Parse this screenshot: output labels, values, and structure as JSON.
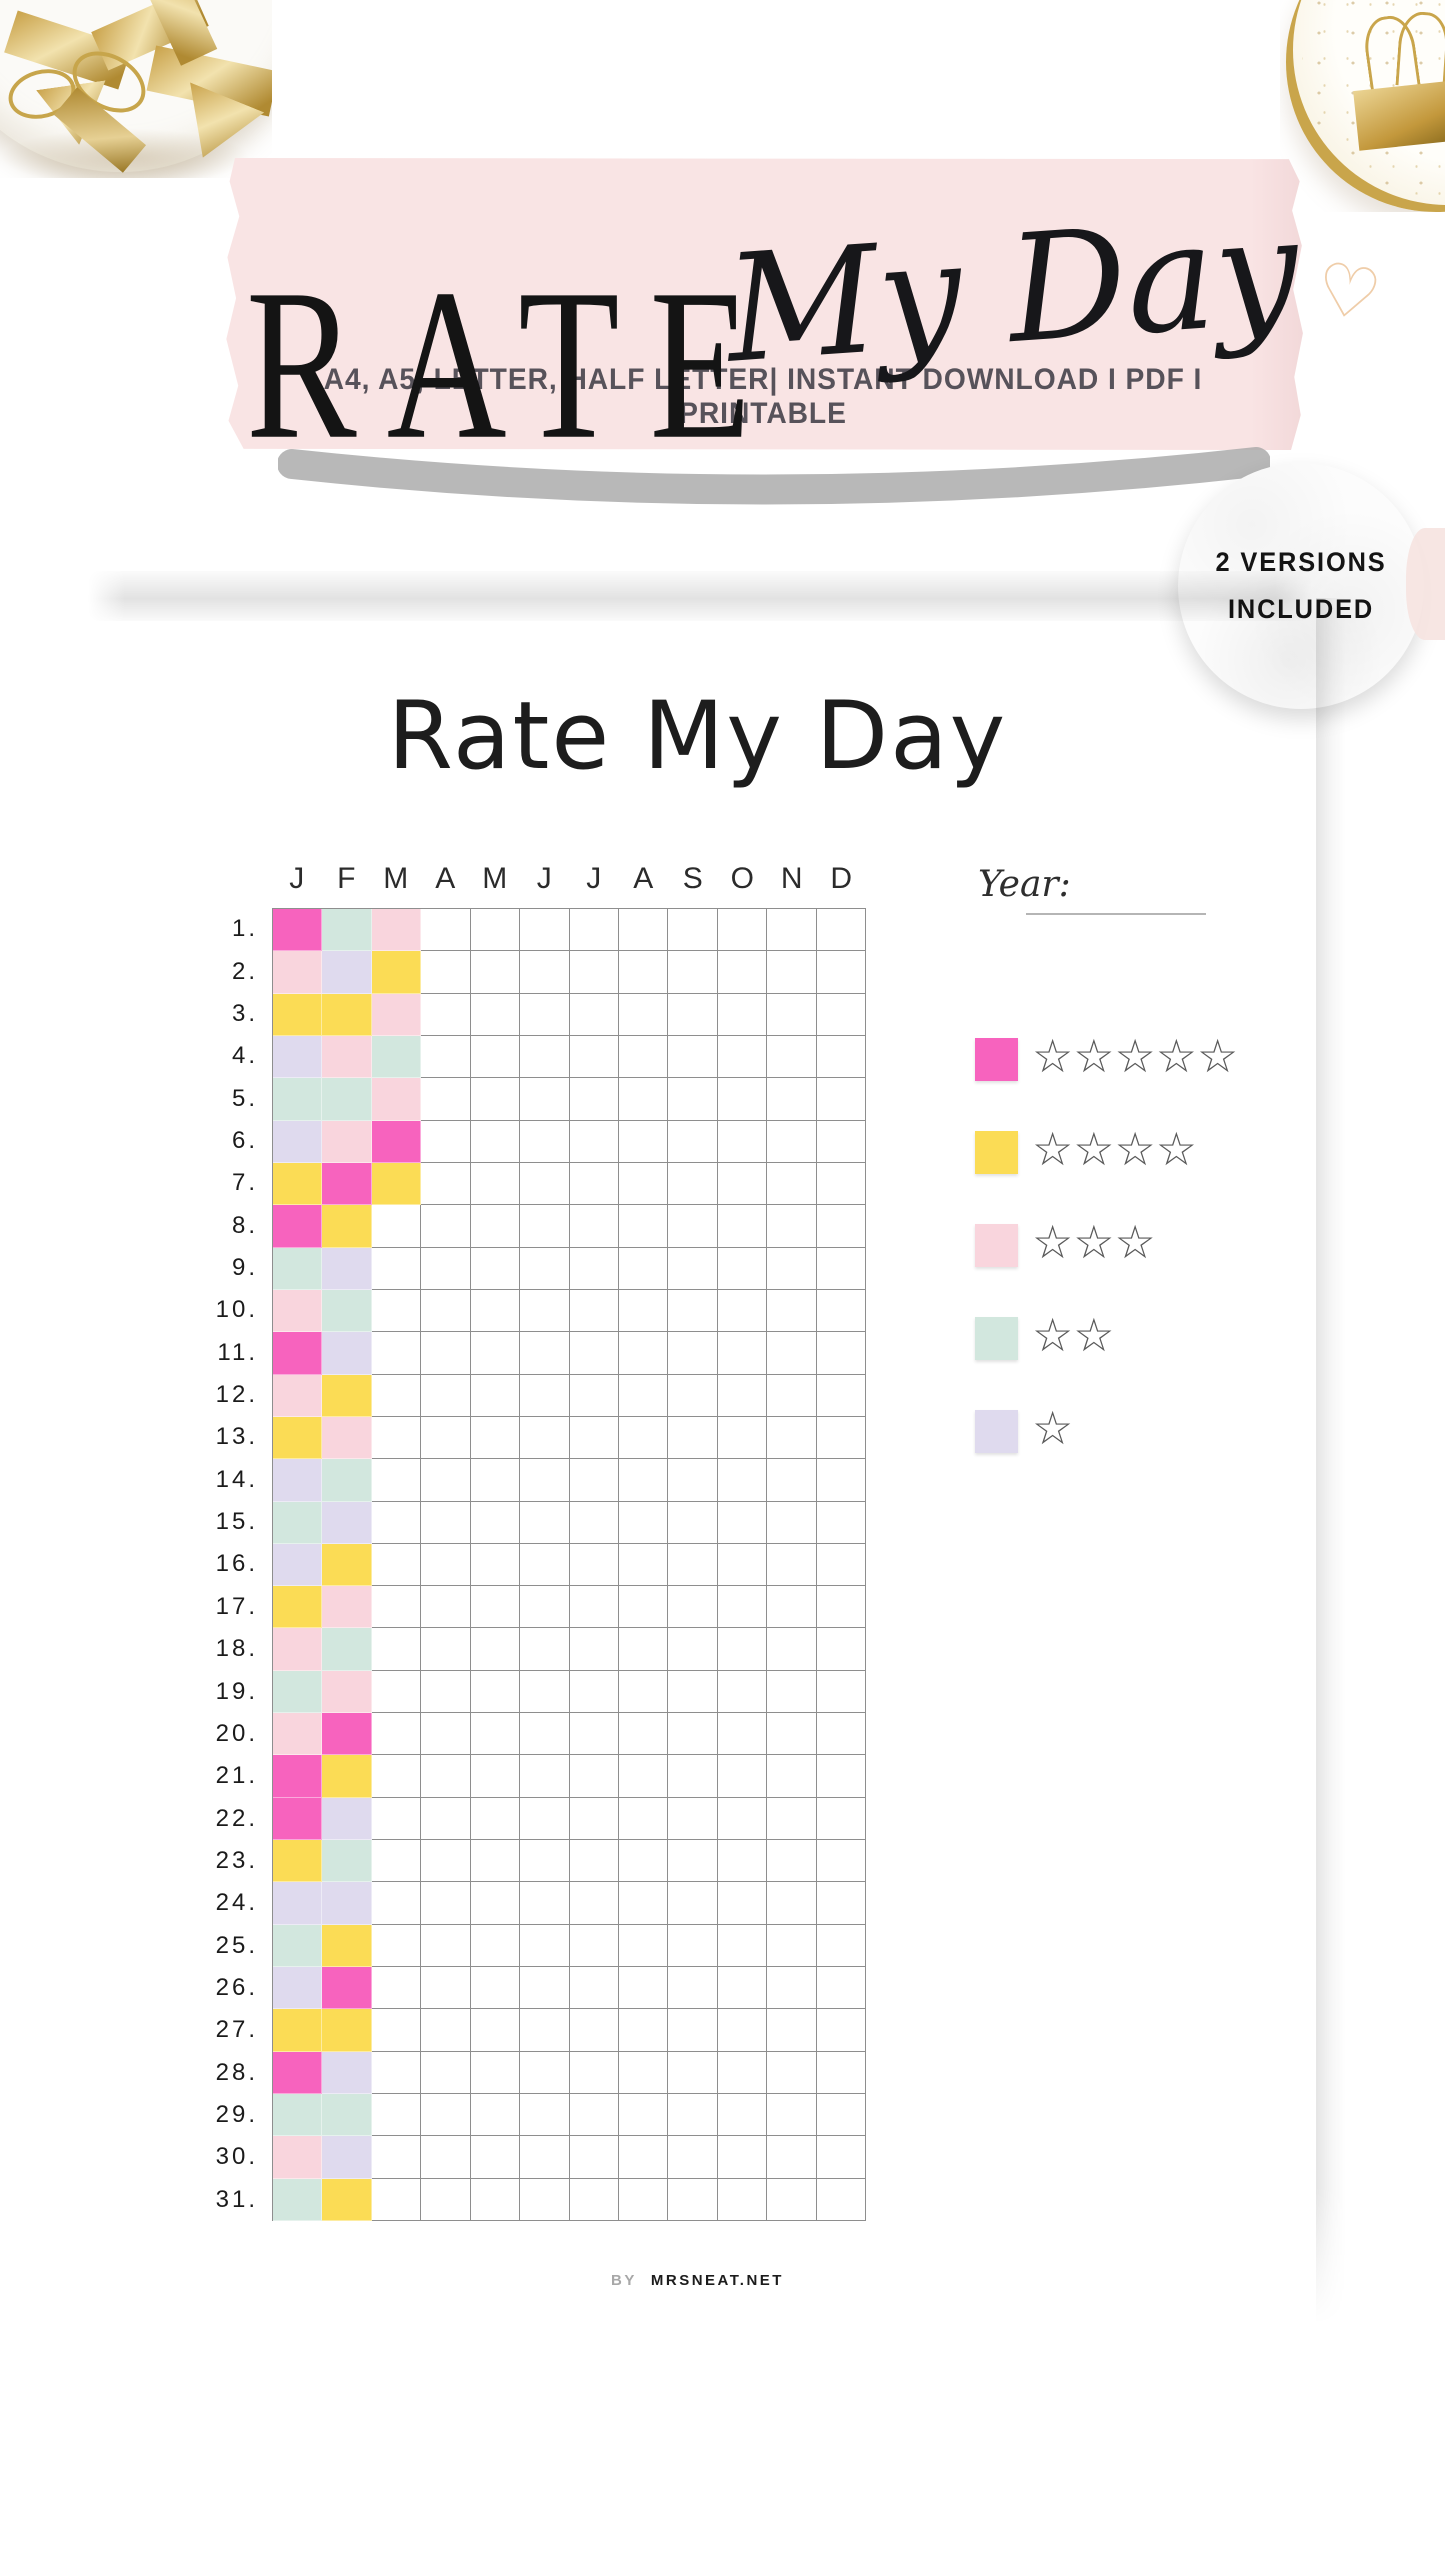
{
  "header": {
    "formats_line": "A4, A5, LETTER, HALF LETTER| INSTANT DOWNLOAD I PDF I PRINTABLE",
    "title_main": "RATE",
    "title_script": "My Day",
    "badge_line1": "2 VERSIONS",
    "badge_line2": "INCLUDED"
  },
  "page": {
    "title": "Rate My Day",
    "year_label": "Year:",
    "footer_by": "BY",
    "footer_site": "MRSNEAT.NET"
  },
  "palette": {
    "magenta": "#F763BE",
    "yellow": "#FBDC55",
    "pink": "#F9D5DD",
    "mint": "#D2E7DE",
    "lavender": "#DFDAEE"
  },
  "tracker": {
    "months": [
      "J",
      "F",
      "M",
      "A",
      "M",
      "J",
      "J",
      "A",
      "S",
      "O",
      "N",
      "D"
    ],
    "columns": 12,
    "day_labels": [
      "1.",
      "2.",
      "3.",
      "4.",
      "5.",
      "6.",
      "7.",
      "8.",
      "9.",
      "10.",
      "11.",
      "12.",
      "13.",
      "14.",
      "15.",
      "16.",
      "17.",
      "18.",
      "19.",
      "20.",
      "21.",
      "22.",
      "23.",
      "24.",
      "25.",
      "26.",
      "27.",
      "28.",
      "29.",
      "30.",
      "31."
    ],
    "fills": [
      [
        "magenta",
        "mint",
        "pink"
      ],
      [
        "pink",
        "lavender",
        "yellow"
      ],
      [
        "yellow",
        "yellow",
        "pink"
      ],
      [
        "lavender",
        "pink",
        "mint"
      ],
      [
        "mint",
        "mint",
        "pink"
      ],
      [
        "lavender",
        "pink",
        "magenta"
      ],
      [
        "yellow",
        "magenta",
        "yellow"
      ],
      [
        "magenta",
        "yellow",
        null
      ],
      [
        "mint",
        "lavender",
        null
      ],
      [
        "pink",
        "mint",
        null
      ],
      [
        "magenta",
        "lavender",
        null
      ],
      [
        "pink",
        "yellow",
        null
      ],
      [
        "yellow",
        "pink",
        null
      ],
      [
        "lavender",
        "mint",
        null
      ],
      [
        "mint",
        "lavender",
        null
      ],
      [
        "lavender",
        "yellow",
        null
      ],
      [
        "yellow",
        "pink",
        null
      ],
      [
        "pink",
        "mint",
        null
      ],
      [
        "mint",
        "pink",
        null
      ],
      [
        "pink",
        "magenta",
        null
      ],
      [
        "magenta",
        "yellow",
        null
      ],
      [
        "magenta",
        "lavender",
        null
      ],
      [
        "yellow",
        "mint",
        null
      ],
      [
        "lavender",
        "lavender",
        null
      ],
      [
        "mint",
        "yellow",
        null
      ],
      [
        "lavender",
        "magenta",
        null
      ],
      [
        "yellow",
        "yellow",
        null
      ],
      [
        "magenta",
        "lavender",
        null
      ],
      [
        "mint",
        "mint",
        null
      ],
      [
        "pink",
        "lavender",
        null
      ],
      [
        "mint",
        "yellow",
        null
      ]
    ]
  },
  "legend": {
    "star_glyph": "☆",
    "heart_glyph": "♡",
    "items": [
      {
        "swatch": "magenta",
        "stars": 5
      },
      {
        "swatch": "yellow",
        "stars": 4
      },
      {
        "swatch": "pink",
        "stars": 3
      },
      {
        "swatch": "mint",
        "stars": 2
      },
      {
        "swatch": "lavender",
        "stars": 1
      }
    ]
  }
}
